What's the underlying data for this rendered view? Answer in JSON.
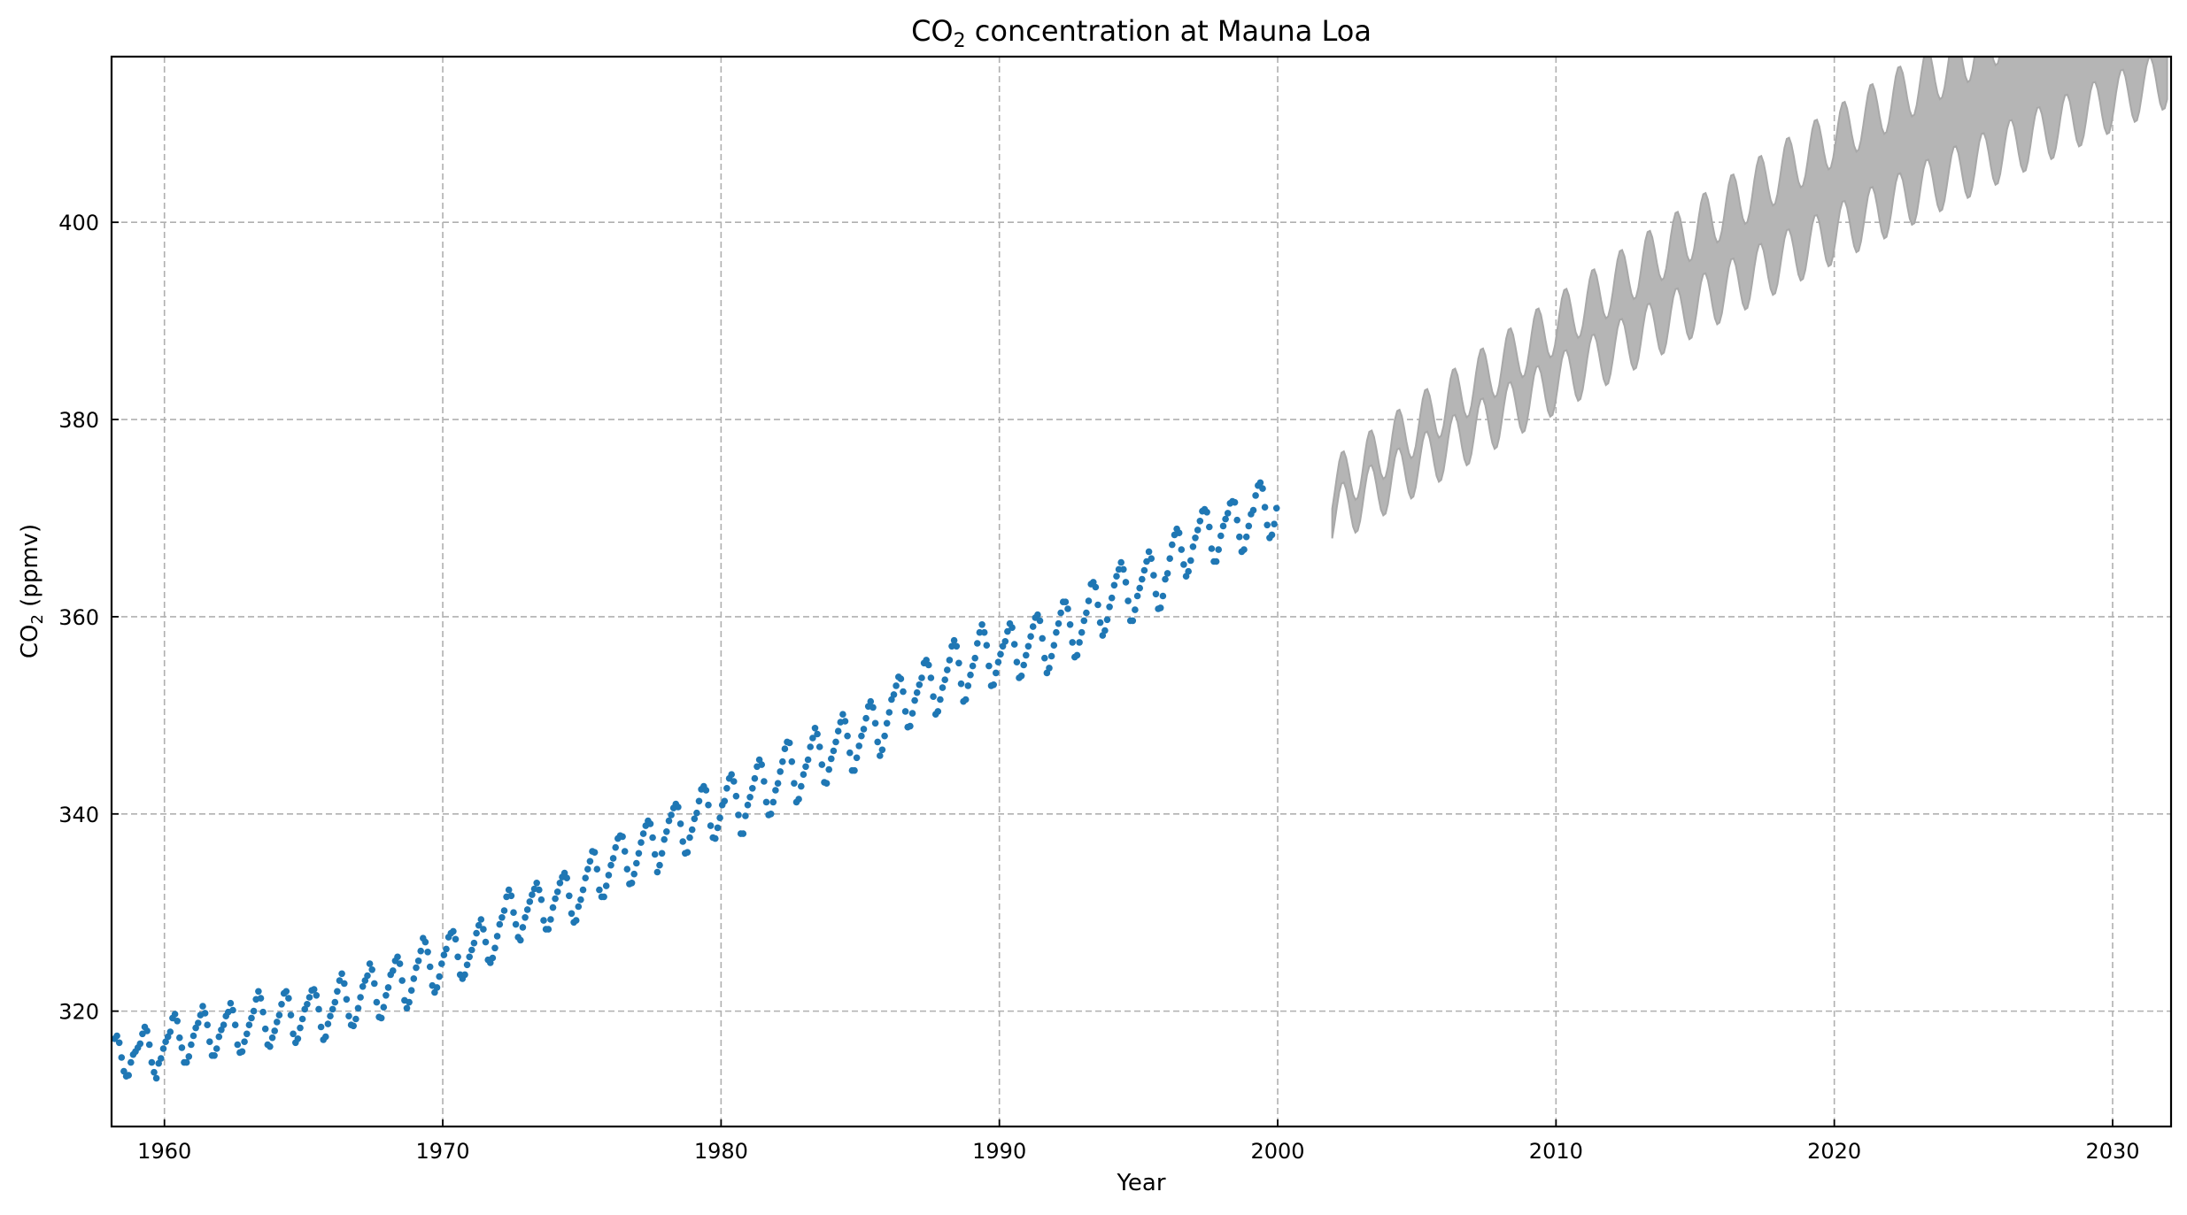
{
  "chart_data": {
    "type": "scatter",
    "title_main": "CO",
    "title_sub": "2",
    "title_rest": " concentration at Mauna Loa",
    "xlabel": "Year",
    "ylabel_main": "CO",
    "ylabel_sub": "2",
    "ylabel_rest": " (ppmv)",
    "xlim": [
      1958.1,
      2032.1
    ],
    "ylim": [
      308.3,
      416.8
    ],
    "xticks": [
      1960,
      1970,
      1980,
      1990,
      2000,
      2010,
      2020,
      2030
    ],
    "yticks": [
      320,
      340,
      360,
      380,
      400
    ],
    "grid": true,
    "colors": {
      "observed": "#1f77b4",
      "band": "#b5b5b5",
      "band_edge": "#a8a8a8",
      "grid": "#b0b0b0"
    },
    "observed": {
      "start_year": 1958.21,
      "step": 0.08333,
      "values": [
        317.2,
        317.5,
        316.8,
        315.3,
        313.9,
        313.4,
        313.5,
        314.8,
        315.6,
        315.9,
        316.3,
        316.7,
        317.7,
        318.4,
        318.0,
        316.6,
        314.8,
        313.8,
        313.2,
        314.7,
        315.2,
        316.2,
        316.9,
        317.4,
        317.9,
        319.3,
        319.7,
        319.0,
        317.3,
        316.3,
        314.8,
        314.8,
        315.4,
        316.6,
        317.5,
        318.3,
        318.8,
        319.6,
        320.5,
        319.8,
        318.6,
        316.9,
        315.5,
        315.5,
        316.2,
        317.4,
        318.1,
        318.6,
        319.5,
        319.9,
        320.8,
        320.1,
        318.6,
        316.6,
        315.8,
        315.9,
        316.9,
        317.7,
        318.6,
        319.3,
        320.0,
        321.2,
        322.0,
        321.3,
        319.9,
        318.2,
        316.6,
        316.4,
        317.3,
        318.0,
        318.9,
        319.6,
        320.7,
        321.8,
        322.0,
        321.3,
        319.6,
        317.7,
        316.8,
        317.2,
        318.3,
        319.2,
        320.2,
        320.7,
        321.4,
        322.1,
        322.2,
        321.6,
        320.2,
        318.4,
        317.1,
        317.4,
        318.7,
        319.5,
        320.2,
        320.9,
        322.0,
        323.1,
        323.8,
        322.8,
        321.2,
        319.5,
        318.6,
        318.5,
        319.2,
        320.3,
        321.4,
        322.5,
        323.1,
        323.6,
        324.8,
        324.2,
        322.8,
        320.9,
        319.4,
        319.3,
        320.4,
        321.6,
        322.4,
        323.7,
        324.1,
        325.1,
        325.5,
        324.8,
        323.1,
        321.1,
        320.3,
        320.9,
        322.1,
        323.3,
        324.4,
        325.1,
        326.1,
        327.4,
        327.0,
        326.0,
        324.5,
        322.6,
        321.9,
        322.4,
        323.5,
        324.8,
        325.7,
        326.3,
        327.5,
        327.9,
        328.1,
        327.3,
        325.5,
        323.7,
        323.3,
        323.7,
        324.7,
        325.5,
        326.2,
        326.9,
        327.9,
        328.7,
        329.3,
        328.3,
        327.0,
        325.2,
        324.9,
        325.4,
        326.4,
        327.6,
        328.8,
        329.5,
        330.2,
        331.6,
        332.3,
        331.7,
        330.0,
        328.8,
        327.5,
        327.2,
        328.5,
        329.5,
        330.3,
        331.1,
        331.8,
        332.4,
        333.0,
        332.3,
        331.3,
        329.2,
        328.3,
        328.3,
        329.3,
        330.5,
        331.4,
        332.1,
        333.0,
        333.6,
        334.0,
        333.5,
        331.7,
        329.9,
        329.0,
        329.2,
        330.6,
        331.3,
        332.3,
        333.5,
        334.4,
        335.2,
        336.2,
        336.1,
        334.4,
        332.3,
        331.6,
        331.6,
        332.7,
        333.8,
        334.8,
        335.5,
        336.6,
        337.5,
        337.8,
        337.7,
        336.2,
        334.4,
        332.9,
        333.0,
        333.9,
        335.0,
        336.0,
        337.1,
        338.0,
        338.8,
        339.3,
        339.0,
        337.6,
        335.9,
        334.1,
        334.8,
        336.0,
        337.4,
        338.2,
        339.3,
        339.9,
        340.6,
        341.0,
        340.7,
        339.0,
        337.2,
        336.0,
        336.1,
        337.6,
        338.4,
        339.5,
        340.1,
        341.3,
        342.5,
        342.8,
        342.4,
        340.9,
        338.8,
        337.6,
        337.5,
        338.6,
        339.6,
        340.9,
        341.3,
        342.6,
        343.6,
        344.0,
        343.3,
        341.8,
        339.9,
        338.0,
        338.0,
        339.8,
        340.9,
        341.7,
        342.6,
        343.6,
        344.8,
        345.5,
        345.0,
        343.3,
        341.2,
        339.9,
        340.0,
        341.2,
        342.4,
        343.1,
        344.3,
        345.3,
        346.6,
        347.3,
        347.2,
        345.3,
        343.1,
        341.2,
        341.5,
        342.8,
        344.0,
        344.8,
        345.5,
        346.8,
        347.7,
        348.7,
        348.1,
        346.8,
        345.0,
        343.2,
        343.1,
        344.5,
        345.6,
        346.4,
        347.3,
        348.4,
        349.3,
        350.1,
        349.4,
        347.9,
        346.2,
        344.4,
        344.4,
        345.7,
        346.9,
        347.9,
        348.6,
        349.7,
        350.9,
        351.4,
        350.8,
        349.2,
        347.3,
        345.9,
        346.5,
        347.9,
        349.2,
        350.3,
        351.6,
        352.1,
        353.0,
        353.9,
        353.7,
        352.4,
        350.4,
        348.8,
        348.9,
        350.2,
        351.5,
        352.3,
        353.1,
        353.8,
        355.3,
        355.6,
        355.1,
        353.8,
        351.9,
        350.1,
        350.4,
        351.6,
        352.8,
        353.6,
        354.6,
        355.6,
        357.0,
        357.6,
        357.0,
        355.3,
        353.2,
        351.4,
        351.6,
        353.0,
        354.1,
        355.0,
        355.8,
        357.3,
        358.4,
        359.2,
        358.4,
        357.1,
        355.0,
        353.0,
        353.1,
        354.3,
        355.4,
        356.2,
        357.0,
        357.5,
        358.5,
        359.3,
        358.9,
        357.2,
        355.4,
        353.8,
        354.0,
        355.1,
        356.1,
        357.0,
        358.0,
        359.0,
        359.9,
        360.2,
        359.6,
        357.8,
        355.8,
        354.3,
        354.8,
        356.0,
        357.1,
        358.4,
        359.3,
        360.4,
        361.5,
        361.5,
        360.8,
        359.2,
        357.4,
        355.9,
        356.1,
        357.4,
        358.4,
        359.6,
        360.4,
        361.6,
        363.3,
        363.5,
        363.0,
        361.2,
        359.4,
        358.1,
        358.6,
        359.7,
        361.0,
        361.9,
        363.2,
        364.1,
        364.8,
        365.5,
        364.8,
        363.5,
        361.6,
        359.6,
        359.6,
        360.7,
        362.1,
        362.9,
        363.8,
        364.7,
        365.6,
        366.6,
        365.9,
        364.2,
        362.3,
        360.8,
        360.9,
        362.1,
        363.8,
        364.4,
        365.9,
        367.3,
        368.3,
        368.9,
        368.5,
        366.8,
        365.3,
        364.1,
        364.6,
        365.7,
        367.1,
        368.0,
        368.8,
        369.7,
        370.7,
        370.9,
        370.6,
        369.1,
        366.9,
        365.6,
        365.6,
        366.8,
        368.2,
        369.2,
        369.9,
        370.5,
        371.5,
        371.7,
        371.6,
        369.8,
        368.1,
        366.6,
        366.8,
        368.1,
        369.2,
        370.4,
        370.8,
        372.3,
        373.3,
        373.6,
        373.0,
        371.1,
        369.3,
        368.0,
        368.3,
        369.4,
        371.0
      ]
    },
    "forecast": {
      "start_year": 2001.96,
      "end_year": 2032.0,
      "step": 0.08333,
      "trend_base": 371.5,
      "trend_rate": 1.95,
      "trend_accel": -0.00913,
      "seasonal_amplitude": 3.0,
      "width_start": 3.0,
      "width_end": 14.5
    }
  }
}
